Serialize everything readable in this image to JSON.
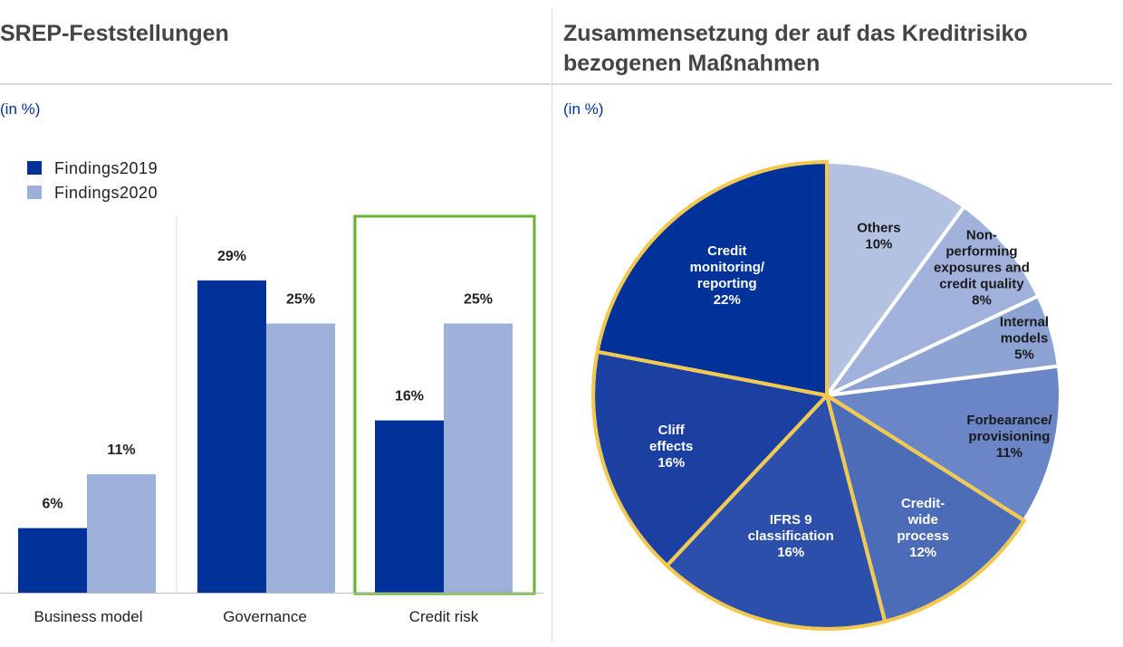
{
  "left_panel": {
    "title": "SREP-Feststellungen",
    "unit": "(in %)"
  },
  "right_panel": {
    "title_line1": "Zusammensetzung der auf das Kreditrisiko",
    "title_line2": "bezogenen Maßnahmen",
    "unit": "(in %)"
  },
  "chart_data": [
    {
      "type": "bar",
      "categories": [
        "Business model",
        "Governance",
        "Credit risk"
      ],
      "series": [
        {
          "name": "Findings2019",
          "values": [
            6,
            29,
            16
          ],
          "labels": [
            "6%",
            "29%",
            "16%"
          ],
          "color": "#003299"
        },
        {
          "name": "Findings2020",
          "values": [
            11,
            25,
            25
          ],
          "labels": [
            "11%",
            "25%",
            "25%"
          ],
          "color": "#9cb0d9"
        }
      ],
      "highlighted_category": "Credit risk",
      "highlight_color": "#65b32e",
      "legend_position": "top-left",
      "grid": false
    },
    {
      "type": "pie",
      "slices": [
        {
          "name": "Others",
          "label_lines": [
            "Others",
            "10%"
          ],
          "value": 10,
          "color": "#b4c2e2",
          "label_color": "#1a1a1a"
        },
        {
          "name": "Non-performing exposures and credit quality",
          "label_lines": [
            "Non-",
            "performing",
            "exposures and",
            "credit quality",
            "8%"
          ],
          "value": 8,
          "color": "#a0b2dc",
          "label_color": "#1a1a1a"
        },
        {
          "name": "Internal models",
          "label_lines": [
            "Internal",
            "models",
            "5%"
          ],
          "value": 5,
          "color": "#8da3d4",
          "label_color": "#1a1a1a"
        },
        {
          "name": "Forbearance/provisioning",
          "label_lines": [
            "Forbearance/",
            "provisioning",
            "11%"
          ],
          "value": 11,
          "color": "#6a86c6",
          "label_color": "#1a1a1a"
        },
        {
          "name": "Credit-wide process",
          "label_lines": [
            "Credit-",
            "wide",
            "process",
            "12%"
          ],
          "value": 12,
          "color": "#4d6cb8",
          "label_color": "#ffffff"
        },
        {
          "name": "IFRS 9 classification",
          "label_lines": [
            "IFRS 9",
            "classification",
            "16%"
          ],
          "value": 16,
          "color": "#2d4fac",
          "label_color": "#ffffff"
        },
        {
          "name": "Cliff effects",
          "label_lines": [
            "Cliff",
            "effects",
            "16%"
          ],
          "value": 16,
          "color": "#1c40a2",
          "label_color": "#ffffff"
        },
        {
          "name": "Credit monitoring/reporting",
          "label_lines": [
            "Credit",
            "monitoring/",
            "reporting",
            "22%"
          ],
          "value": 22,
          "color": "#003299",
          "label_color": "#ffffff"
        }
      ],
      "start_angle": "12 o'clock",
      "direction": "clockwise",
      "highlighted_slices": [
        "Credit-wide process",
        "IFRS 9 classification",
        "Cliff effects",
        "Credit monitoring/reporting"
      ],
      "highlight_color": "#f2c94c"
    }
  ]
}
